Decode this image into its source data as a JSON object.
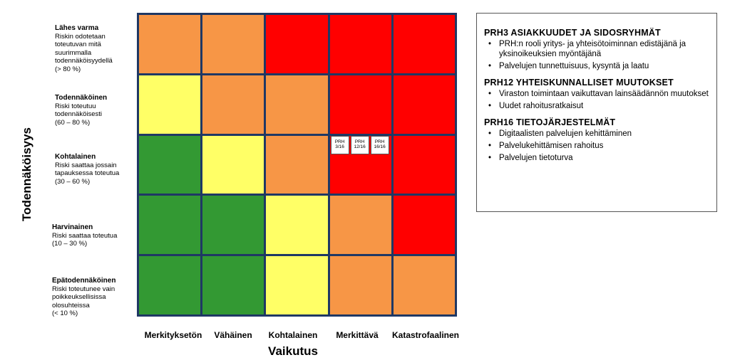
{
  "y_axis_title": "Todennäköisyys",
  "x_axis_title": "Vaikutus",
  "rows": [
    {
      "title": "Lähes varma",
      "desc": "Riskin odotetaan\ntoteutuvan mitä\n suurimmalla\ntodennäköisyydellä\n(> 80 %)"
    },
    {
      "title": "Todennäköinen",
      "desc": "Riski toteutuu\ntodennäköisesti\n(60 – 80 %)"
    },
    {
      "title": "Kohtalainen",
      "desc": "Riski saattaa jossain\ntapauksessa toteutua\n (30 – 60 %)"
    },
    {
      "title": "Harvinainen",
      "desc": "Riski saattaa toteutua\n (10 – 30 %)"
    },
    {
      "title": "Epätodennäköinen",
      "desc": "Riski toteutunee vain\npoikkeuksellisissa\nolosuhteissa\n(< 10 %)"
    }
  ],
  "columns": [
    "Merkityksetön",
    "Vähäinen",
    "Kohtalainen",
    "Merkittävä",
    "Katastrofaalinen"
  ],
  "cell_colors": {
    "green": "#339933",
    "yellow": "#ffff66",
    "orange": "#f79646",
    "red": "#ff0000",
    "grid": "#1f3864"
  },
  "matrix": [
    [
      "orange",
      "orange",
      "red",
      "red",
      "red"
    ],
    [
      "yellow",
      "orange",
      "orange",
      "red",
      "red"
    ],
    [
      "green",
      "yellow",
      "orange",
      "red",
      "red"
    ],
    [
      "green",
      "green",
      "yellow",
      "orange",
      "red"
    ],
    [
      "green",
      "green",
      "yellow",
      "orange",
      "orange"
    ]
  ],
  "risk_tags": [
    {
      "row": 2,
      "col": 3,
      "labels": [
        "PRH\n3/16",
        "PRH\n12/16",
        "PRH\n16/16"
      ]
    }
  ],
  "legend": [
    {
      "title": "PRH3 ASIAKKUUDET JA SIDOSRYHMÄT",
      "items": [
        "PRH:n rooli yritys- ja yhteisötoiminnan edistäjänä ja yksinoikeuksien myöntäjänä",
        "Palvelujen tunnettuisuus, kysyntä ja laatu"
      ]
    },
    {
      "title": "PRH12 YHTEISKUNNALLISET MUUTOKSET",
      "items": [
        "Viraston toimintaan vaikuttavan lainsäädännön muutokset",
        "Uudet rahoitusratkaisut"
      ]
    },
    {
      "title": "PRH16 TIETOJÄRJESTELMÄT",
      "items": [
        "Digitaalisten palvelujen kehittäminen",
        "Palvelukehittämisen rahoitus",
        "Palvelujen tietoturva"
      ]
    }
  ]
}
